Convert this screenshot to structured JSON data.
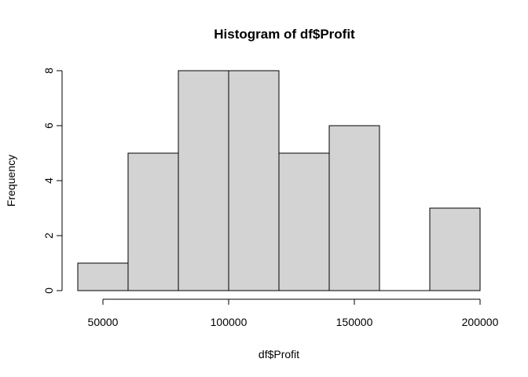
{
  "chart_data": {
    "type": "bar",
    "title": "Histogram of df$Profit",
    "xlabel": "df$Profit",
    "ylabel": "Frequency",
    "bin_edges": [
      40000,
      60000,
      80000,
      100000,
      120000,
      140000,
      160000,
      180000,
      200000
    ],
    "counts": [
      1,
      5,
      8,
      8,
      5,
      6,
      0,
      3
    ],
    "xlim": [
      40000,
      200000
    ],
    "ylim": [
      0,
      8
    ],
    "x_ticks": [
      50000,
      100000,
      150000,
      200000
    ],
    "x_tick_labels": [
      "50000",
      "100000",
      "150000",
      "200000"
    ],
    "y_ticks": [
      0,
      2,
      4,
      6,
      8
    ],
    "y_tick_labels": [
      "0",
      "2",
      "4",
      "6",
      "8"
    ],
    "bar_color": "#d3d3d3",
    "grid": false
  }
}
